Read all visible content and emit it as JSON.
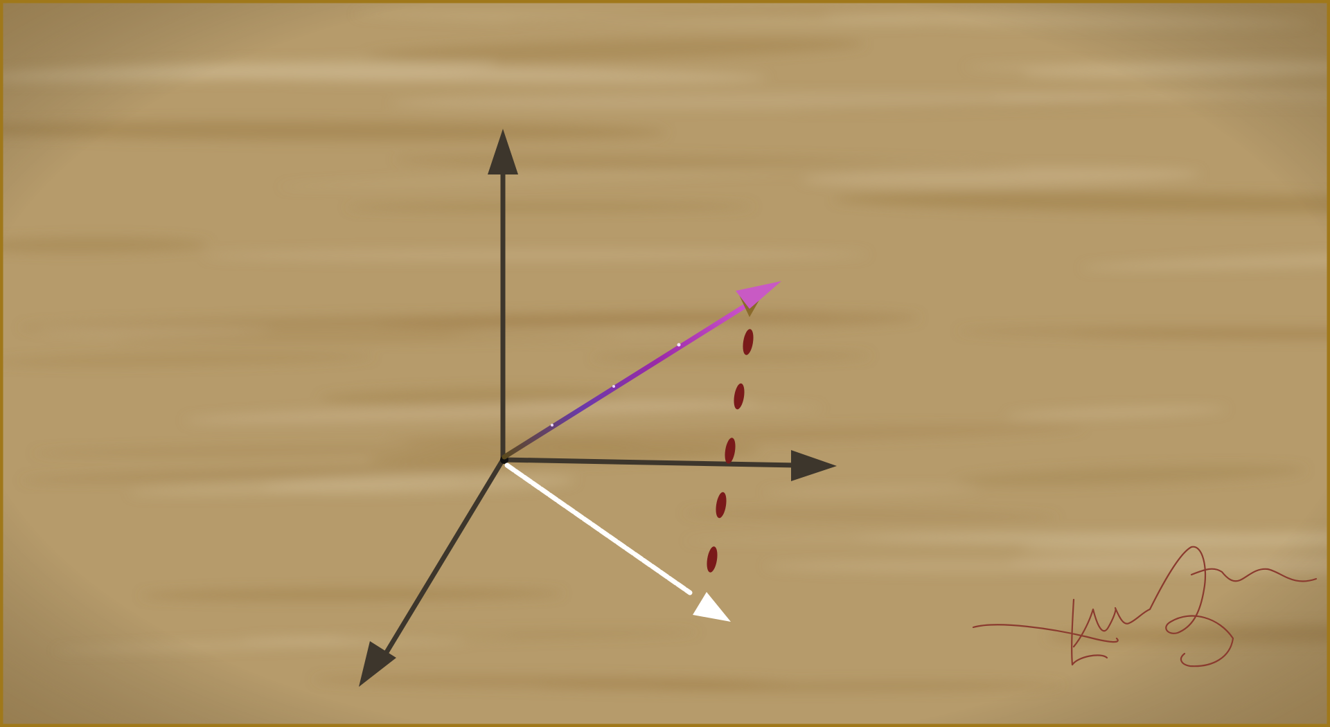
{
  "canvas": {
    "background_color": "#b69b6b",
    "frame_color": "#a0781a",
    "grain_light_color": "#c9b38a",
    "grain_dark_color": "#a3844f"
  },
  "diagram": {
    "axis_color": "#3d362c",
    "vector_gradient": [
      "#5a4a1a",
      "#6a3aa8",
      "#9a2aa8",
      "#d45ad0"
    ],
    "vector_head_color": "#c85ac4",
    "vector_head_shadow_color": "#8a6a2a",
    "projection_color": "#ffffff",
    "dash_color": "#7a1a1a",
    "dash_count": 5
  },
  "signature": {
    "color": "#8a3a2e",
    "style": "handwritten scribble"
  }
}
